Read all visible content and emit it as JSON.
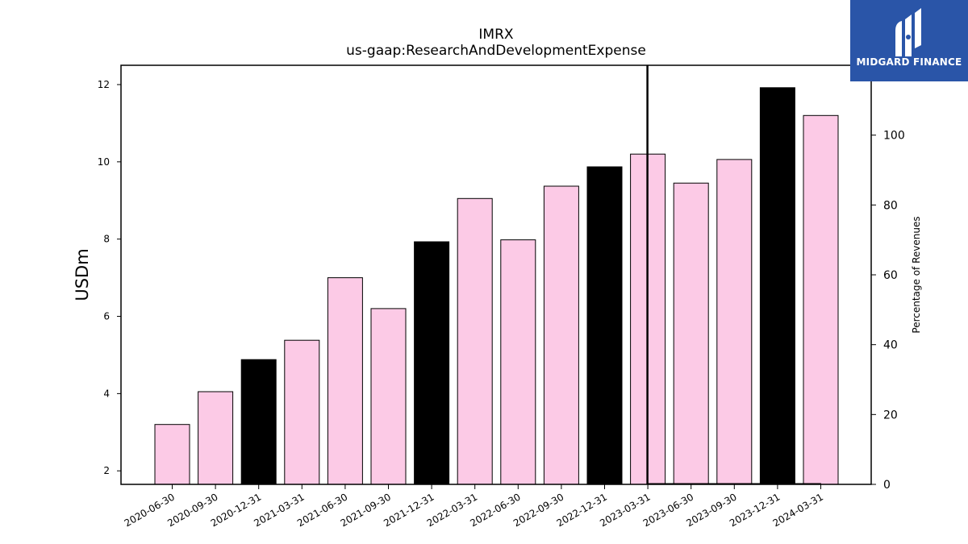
{
  "brand": {
    "name": "MIDGARD FINANCE"
  },
  "chart_data": {
    "type": "bar",
    "title": "IMRX",
    "subtitle": "us-gaap:ResearchAndDevelopmentExpense",
    "ylabel": "USDm",
    "y2label": "Percentage of Revenues",
    "ylim": [
      1.65,
      12.5
    ],
    "y2lim": [
      0,
      120
    ],
    "yticks": [
      2,
      4,
      6,
      8,
      10,
      12
    ],
    "y2ticks": [
      0,
      20,
      40,
      60,
      80,
      100
    ],
    "categories": [
      "2020-06-30",
      "2020-09-30",
      "2020-12-31",
      "2021-03-31",
      "2021-06-30",
      "2021-09-30",
      "2021-12-31",
      "2022-03-31",
      "2022-06-30",
      "2022-09-30",
      "2022-12-31",
      "2023-03-31",
      "2023-06-30",
      "2023-09-30",
      "2023-12-31",
      "2024-03-31"
    ],
    "values": [
      3.2,
      4.05,
      4.88,
      5.38,
      7.0,
      6.2,
      7.93,
      9.05,
      7.98,
      9.37,
      9.87,
      10.2,
      9.45,
      10.06,
      11.92,
      11.2
    ],
    "fiscal_year_end": [
      false,
      false,
      true,
      false,
      false,
      false,
      true,
      false,
      false,
      false,
      true,
      false,
      false,
      false,
      true,
      false
    ],
    "colors": {
      "bar": "#fccae6",
      "year_end_bar": "#000000",
      "edge": "#000000"
    },
    "marker_category": "2023-03-31",
    "grid": false,
    "legend": "none"
  }
}
